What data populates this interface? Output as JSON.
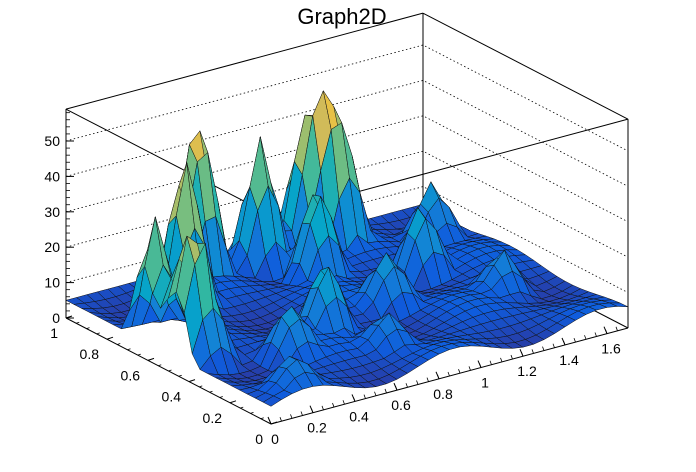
{
  "chart_data": {
    "type": "surface",
    "title": "Graph2D",
    "xlabel": "",
    "ylabel": "",
    "zlabel": "",
    "xlim": [
      0,
      1.7
    ],
    "ylim": [
      0,
      1
    ],
    "zlim": [
      0,
      59
    ],
    "x_ticks": [
      "0",
      "0.2",
      "0.4",
      "0.6",
      "0.8",
      "1",
      "1.2",
      "1.4",
      "1.6"
    ],
    "y_ticks": [
      "0",
      "0.2",
      "0.4",
      "0.6",
      "0.8",
      "1"
    ],
    "z_ticks": [
      "0",
      "10",
      "20",
      "30",
      "40",
      "50"
    ],
    "grid": "z-gridlines on back walls",
    "colormap": [
      "#352a87",
      "#0f5cdd",
      "#1481d6",
      "#06a4ca",
      "#2eb7a4",
      "#87bf77",
      "#d1bb59",
      "#fec832",
      "#f9fb0e"
    ],
    "peaks": [
      {
        "x": 0.05,
        "y": 0.62,
        "z": 35
      },
      {
        "x": 0.05,
        "y": 0.48,
        "z": 28
      },
      {
        "x": 0.1,
        "y": 0.42,
        "z": 24
      },
      {
        "x": 0.35,
        "y": 0.78,
        "z": 45
      },
      {
        "x": 0.58,
        "y": 0.95,
        "z": 48
      },
      {
        "x": 0.65,
        "y": 0.4,
        "z": 20
      },
      {
        "x": 0.85,
        "y": 0.92,
        "z": 38
      },
      {
        "x": 0.95,
        "y": 0.75,
        "z": 28
      },
      {
        "x": 1.1,
        "y": 0.95,
        "z": 40
      },
      {
        "x": 1.2,
        "y": 0.9,
        "z": 38
      },
      {
        "x": 0.38,
        "y": 0.3,
        "z": 14
      },
      {
        "x": 0.75,
        "y": 0.2,
        "z": 10
      },
      {
        "x": 1.0,
        "y": 0.45,
        "z": 15
      },
      {
        "x": 1.3,
        "y": 0.6,
        "z": 22
      },
      {
        "x": 1.45,
        "y": 0.35,
        "z": 12
      },
      {
        "x": 0.2,
        "y": 0.1,
        "z": 8
      },
      {
        "x": 1.55,
        "y": 0.8,
        "z": 18
      }
    ]
  }
}
